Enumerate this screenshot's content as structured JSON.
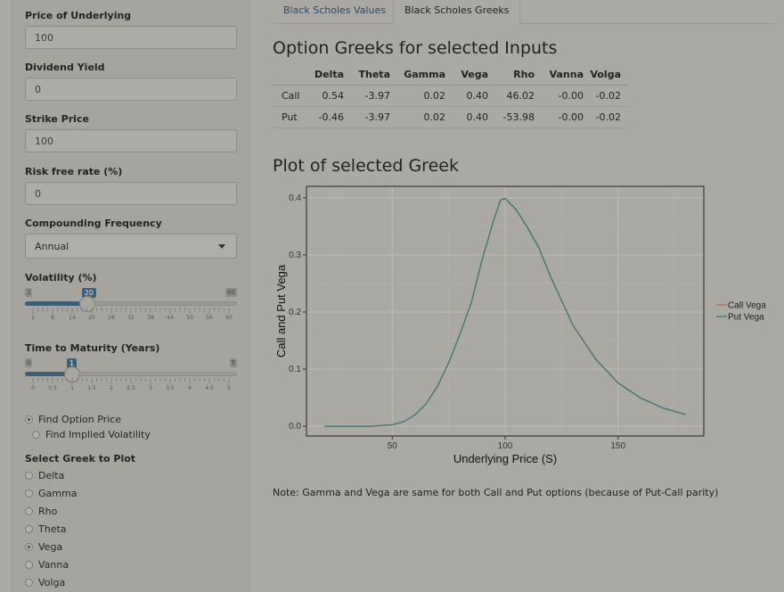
{
  "sidebar": {
    "price_label": "Price of Underlying",
    "price_value": "100",
    "dividend_label": "Dividend Yield",
    "dividend_value": "0",
    "strike_label": "Strike Price",
    "strike_value": "100",
    "rate_label": "Risk free rate (%)",
    "rate_value": "0",
    "compounding_label": "Compounding Frequency",
    "compounding_value": "Annual",
    "volatility": {
      "label": "Volatility (%)",
      "min": "2",
      "max": "60",
      "value": "20",
      "fraction": 0.2759,
      "ticks": [
        "2",
        "8",
        "14",
        "20",
        "26",
        "32",
        "38",
        "44",
        "50",
        "56",
        "60"
      ]
    },
    "maturity": {
      "label": "Time to Maturity (Years)",
      "min": "0",
      "max": "5",
      "value": "1",
      "fraction": 0.2,
      "ticks": [
        "0",
        "0.5",
        "1",
        "1.5",
        "2",
        "2.5",
        "3",
        "3.5",
        "4",
        "4.5",
        "5"
      ]
    },
    "mode_options": [
      {
        "label": "Find Option Price",
        "selected": true
      },
      {
        "label": "Find Implied Volatility",
        "selected": false
      }
    ],
    "greek_label": "Select Greek to Plot",
    "greek_options": [
      {
        "label": "Delta",
        "selected": false
      },
      {
        "label": "Gamma",
        "selected": false
      },
      {
        "label": "Rho",
        "selected": false
      },
      {
        "label": "Theta",
        "selected": false
      },
      {
        "label": "Vega",
        "selected": true
      },
      {
        "label": "Vanna",
        "selected": false
      },
      {
        "label": "Volga",
        "selected": false
      }
    ]
  },
  "tabs": [
    "Black Scholes Values",
    "Black Scholes Greeks"
  ],
  "greeks_title": "Option Greeks for selected Inputs",
  "greeks_table": {
    "headers": [
      "",
      "Delta",
      "Theta",
      "Gamma",
      "Vega",
      "Rho",
      "Vanna",
      "Volga"
    ],
    "rows": [
      [
        "Call",
        "0.54",
        "-3.97",
        "0.02",
        "0.40",
        "46.02",
        "-0.00",
        "-0.02"
      ],
      [
        "Put",
        "-0.46",
        "-3.97",
        "0.02",
        "0.40",
        "-53.98",
        "-0.00",
        "-0.02"
      ]
    ]
  },
  "plot_title": "Plot of selected Greek",
  "note": "Note: Gamma and Vega are same for both Call and Put options (because of Put-Call parity)",
  "chart_data": {
    "type": "line",
    "title": "",
    "xlabel": "Underlying Price (S)",
    "ylabel": "Call and Put  Vega",
    "xlim": [
      12,
      188
    ],
    "ylim": [
      -0.017,
      0.42
    ],
    "xticks": [
      50,
      100,
      150
    ],
    "yticks": [
      0.0,
      0.1,
      0.2,
      0.3,
      0.4
    ],
    "ytick_labels": [
      "0.0",
      "0.1",
      "0.2",
      "0.3",
      "0.4"
    ],
    "legend_position": "right",
    "grid": true,
    "series": [
      {
        "name": "Call Vega",
        "color": "#b06a5e",
        "x": [
          20,
          40,
          50,
          55,
          60,
          65,
          70,
          75,
          80,
          85,
          90,
          95,
          98,
          100,
          105,
          110,
          115,
          120,
          130,
          140,
          150,
          160,
          170,
          180
        ],
        "y": [
          0.0,
          0.0,
          0.0025,
          0.0081,
          0.0196,
          0.0395,
          0.0697,
          0.1109,
          0.1613,
          0.2163,
          0.2947,
          0.3617,
          0.3962,
          0.3989,
          0.3785,
          0.3475,
          0.3122,
          0.263,
          0.1771,
          0.118,
          0.076,
          0.0495,
          0.0318,
          0.0204
        ]
      },
      {
        "name": "Put Vega",
        "color": "#3d7a78",
        "x": [
          20,
          40,
          50,
          55,
          60,
          65,
          70,
          75,
          80,
          85,
          90,
          95,
          98,
          100,
          105,
          110,
          115,
          120,
          130,
          140,
          150,
          160,
          170,
          180
        ],
        "y": [
          0.0,
          0.0,
          0.0025,
          0.0081,
          0.0196,
          0.0395,
          0.0697,
          0.1109,
          0.1613,
          0.2163,
          0.2947,
          0.3617,
          0.3962,
          0.3989,
          0.3785,
          0.3475,
          0.3122,
          0.263,
          0.1771,
          0.118,
          0.076,
          0.0495,
          0.0318,
          0.0204
        ]
      }
    ]
  }
}
